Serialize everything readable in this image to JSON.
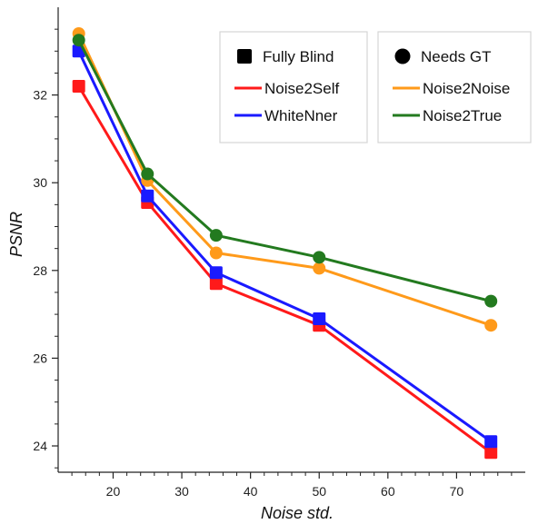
{
  "chart_data": {
    "type": "line",
    "title": "",
    "xlabel": "Noise std.",
    "ylabel": "PSNR",
    "xlim": [
      12,
      80
    ],
    "ylim": [
      23.4,
      34.0
    ],
    "x_ticks": [
      20,
      30,
      40,
      50,
      60,
      70
    ],
    "y_ticks": [
      24,
      26,
      28,
      30,
      32
    ],
    "grid": false,
    "legend_placement": "top-right",
    "legend_groups": [
      {
        "header": "Fully Blind",
        "marker": "square",
        "series": [
          "Noise2Self",
          "WhiteNner"
        ]
      },
      {
        "header": "Needs GT",
        "marker": "circle",
        "series": [
          "Noise2Noise",
          "Noise2True"
        ]
      }
    ],
    "series": [
      {
        "name": "Noise2Self",
        "color": "#ff1a1a",
        "marker": "square",
        "x": [
          15,
          25,
          35,
          50,
          75
        ],
        "y": [
          32.2,
          29.55,
          27.7,
          26.75,
          23.85
        ]
      },
      {
        "name": "WhiteNner",
        "color": "#1a1aff",
        "marker": "square",
        "x": [
          15,
          25,
          35,
          50,
          75
        ],
        "y": [
          33.0,
          29.7,
          27.95,
          26.9,
          24.1
        ]
      },
      {
        "name": "Noise2Noise",
        "color": "#ff9a1a",
        "marker": "circle",
        "x": [
          15,
          25,
          35,
          50,
          75
        ],
        "y": [
          33.4,
          30.05,
          28.4,
          28.05,
          26.75
        ]
      },
      {
        "name": "Noise2True",
        "color": "#237a1f",
        "marker": "circle",
        "x": [
          15,
          25,
          35,
          50,
          75
        ],
        "y": [
          33.25,
          30.2,
          28.8,
          28.3,
          27.3
        ]
      }
    ]
  }
}
